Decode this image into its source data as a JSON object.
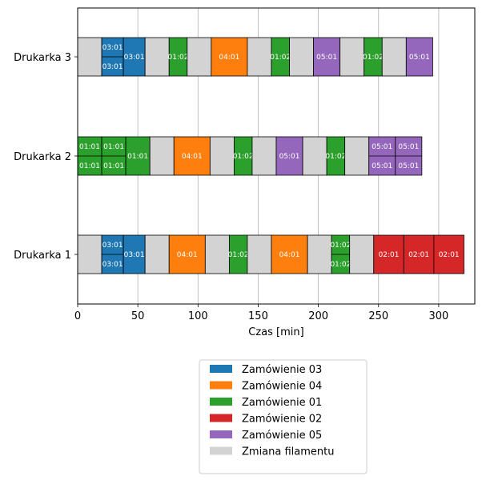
{
  "chart_data": {
    "type": "gantt",
    "xlabel": "Czas [min]",
    "xlim": [
      0,
      330
    ],
    "xticks": [
      0,
      50,
      100,
      150,
      200,
      250,
      300
    ],
    "grid": "vertical",
    "legend_position": "below",
    "legend": [
      {
        "label": "Zamówienie 03",
        "color": "#1f77b4"
      },
      {
        "label": "Zamówienie 04",
        "color": "#ff7f0e"
      },
      {
        "label": "Zamówienie 01",
        "color": "#2ca02c"
      },
      {
        "label": "Zamówienie 02",
        "color": "#d62728"
      },
      {
        "label": "Zamówienie 05",
        "color": "#9467bd"
      },
      {
        "label": "Zmiana filamentu",
        "color": "#d3d3d3"
      }
    ],
    "rows": [
      {
        "name": "Drukarka 3",
        "segments": [
          {
            "start": 0,
            "end": 20,
            "kind": "change"
          },
          {
            "start": 20,
            "end": 38,
            "kind": "order",
            "color": "#1f77b4",
            "labels": [
              "03:01",
              "03:01"
            ]
          },
          {
            "start": 38,
            "end": 56,
            "kind": "order",
            "color": "#1f77b4",
            "labels": [
              "03:01"
            ]
          },
          {
            "start": 56,
            "end": 76,
            "kind": "change"
          },
          {
            "start": 76,
            "end": 91,
            "kind": "order",
            "color": "#2ca02c",
            "labels": [
              "01:02"
            ]
          },
          {
            "start": 91,
            "end": 111,
            "kind": "change"
          },
          {
            "start": 111,
            "end": 141,
            "kind": "order",
            "color": "#ff7f0e",
            "labels": [
              "04:01"
            ]
          },
          {
            "start": 141,
            "end": 161,
            "kind": "change"
          },
          {
            "start": 161,
            "end": 176,
            "kind": "order",
            "color": "#2ca02c",
            "labels": [
              "01:02"
            ]
          },
          {
            "start": 176,
            "end": 196,
            "kind": "change"
          },
          {
            "start": 196,
            "end": 218,
            "kind": "order",
            "color": "#9467bd",
            "labels": [
              "05:01"
            ]
          },
          {
            "start": 218,
            "end": 238,
            "kind": "change"
          },
          {
            "start": 238,
            "end": 253,
            "kind": "order",
            "color": "#2ca02c",
            "labels": [
              "01:02"
            ]
          },
          {
            "start": 253,
            "end": 273,
            "kind": "change"
          },
          {
            "start": 273,
            "end": 295,
            "kind": "order",
            "color": "#9467bd",
            "labels": [
              "05:01"
            ]
          }
        ]
      },
      {
        "name": "Drukarka 2",
        "segments": [
          {
            "start": 0,
            "end": 20,
            "kind": "order",
            "color": "#2ca02c",
            "labels": [
              "01:01",
              "01:01"
            ]
          },
          {
            "start": 20,
            "end": 40,
            "kind": "order",
            "color": "#2ca02c",
            "labels": [
              "01:01",
              "01:01"
            ]
          },
          {
            "start": 40,
            "end": 60,
            "kind": "order",
            "color": "#2ca02c",
            "labels": [
              "01:01"
            ]
          },
          {
            "start": 60,
            "end": 80,
            "kind": "change"
          },
          {
            "start": 80,
            "end": 110,
            "kind": "order",
            "color": "#ff7f0e",
            "labels": [
              "04:01"
            ]
          },
          {
            "start": 110,
            "end": 130,
            "kind": "change"
          },
          {
            "start": 130,
            "end": 145,
            "kind": "order",
            "color": "#2ca02c",
            "labels": [
              "01:02"
            ]
          },
          {
            "start": 145,
            "end": 165,
            "kind": "change"
          },
          {
            "start": 165,
            "end": 187,
            "kind": "order",
            "color": "#9467bd",
            "labels": [
              "05:01"
            ]
          },
          {
            "start": 187,
            "end": 207,
            "kind": "change"
          },
          {
            "start": 207,
            "end": 222,
            "kind": "order",
            "color": "#2ca02c",
            "labels": [
              "01:02"
            ]
          },
          {
            "start": 222,
            "end": 242,
            "kind": "change"
          },
          {
            "start": 242,
            "end": 264,
            "kind": "order",
            "color": "#9467bd",
            "labels": [
              "05:01",
              "05:01"
            ]
          },
          {
            "start": 264,
            "end": 286,
            "kind": "order",
            "color": "#9467bd",
            "labels": [
              "05:01",
              "05:01"
            ]
          }
        ]
      },
      {
        "name": "Drukarka 1",
        "segments": [
          {
            "start": 0,
            "end": 20,
            "kind": "change"
          },
          {
            "start": 20,
            "end": 38,
            "kind": "order",
            "color": "#1f77b4",
            "labels": [
              "03:01",
              "03:01"
            ]
          },
          {
            "start": 38,
            "end": 56,
            "kind": "order",
            "color": "#1f77b4",
            "labels": [
              "03:01"
            ]
          },
          {
            "start": 56,
            "end": 76,
            "kind": "change"
          },
          {
            "start": 76,
            "end": 106,
            "kind": "order",
            "color": "#ff7f0e",
            "labels": [
              "04:01"
            ]
          },
          {
            "start": 106,
            "end": 126,
            "kind": "change"
          },
          {
            "start": 126,
            "end": 141,
            "kind": "order",
            "color": "#2ca02c",
            "labels": [
              "01:02"
            ]
          },
          {
            "start": 141,
            "end": 161,
            "kind": "change"
          },
          {
            "start": 161,
            "end": 191,
            "kind": "order",
            "color": "#ff7f0e",
            "labels": [
              "04:01"
            ]
          },
          {
            "start": 191,
            "end": 211,
            "kind": "change"
          },
          {
            "start": 211,
            "end": 226,
            "kind": "order",
            "color": "#2ca02c",
            "labels": [
              "01:02",
              "01:02"
            ]
          },
          {
            "start": 226,
            "end": 246,
            "kind": "change"
          },
          {
            "start": 246,
            "end": 271,
            "kind": "order",
            "color": "#d62728",
            "labels": [
              "02:01"
            ]
          },
          {
            "start": 271,
            "end": 296,
            "kind": "order",
            "color": "#d62728",
            "labels": [
              "02:01"
            ]
          },
          {
            "start": 296,
            "end": 321,
            "kind": "order",
            "color": "#d62728",
            "labels": [
              "02:01"
            ]
          }
        ]
      }
    ]
  }
}
